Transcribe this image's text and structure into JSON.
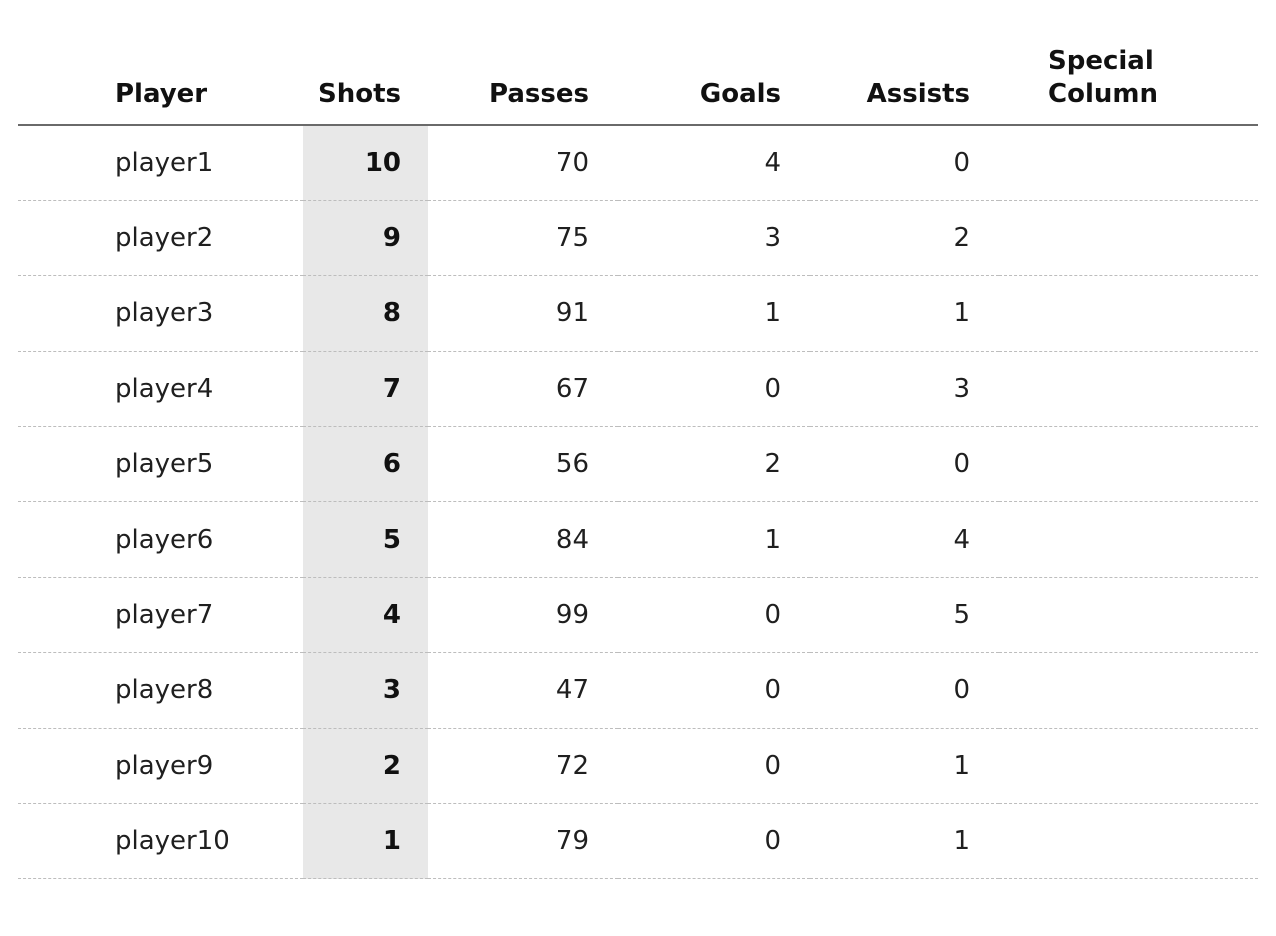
{
  "chart_data": {
    "type": "table",
    "title": "",
    "columns": [
      {
        "key": "player",
        "label": "Player",
        "align": "left",
        "highlighted": false
      },
      {
        "key": "shots",
        "label": "Shots",
        "align": "right",
        "highlighted": true
      },
      {
        "key": "passes",
        "label": "Passes",
        "align": "right",
        "highlighted": false
      },
      {
        "key": "goals",
        "label": "Goals",
        "align": "right",
        "highlighted": false
      },
      {
        "key": "assists",
        "label": "Assists",
        "align": "right",
        "highlighted": false
      },
      {
        "key": "special",
        "label": "Special Column",
        "align": "left",
        "highlighted": false
      }
    ],
    "rows": [
      {
        "player": "player1",
        "shots": 10,
        "passes": 70,
        "goals": 4,
        "assists": 0,
        "special": ""
      },
      {
        "player": "player2",
        "shots": 9,
        "passes": 75,
        "goals": 3,
        "assists": 2,
        "special": ""
      },
      {
        "player": "player3",
        "shots": 8,
        "passes": 91,
        "goals": 1,
        "assists": 1,
        "special": ""
      },
      {
        "player": "player4",
        "shots": 7,
        "passes": 67,
        "goals": 0,
        "assists": 3,
        "special": ""
      },
      {
        "player": "player5",
        "shots": 6,
        "passes": 56,
        "goals": 2,
        "assists": 0,
        "special": ""
      },
      {
        "player": "player6",
        "shots": 5,
        "passes": 84,
        "goals": 1,
        "assists": 4,
        "special": ""
      },
      {
        "player": "player7",
        "shots": 4,
        "passes": 99,
        "goals": 0,
        "assists": 5,
        "special": ""
      },
      {
        "player": "player8",
        "shots": 3,
        "passes": 47,
        "goals": 0,
        "assists": 0,
        "special": ""
      },
      {
        "player": "player9",
        "shots": 2,
        "passes": 72,
        "goals": 0,
        "assists": 1,
        "special": ""
      },
      {
        "player": "player10",
        "shots": 1,
        "passes": 79,
        "goals": 0,
        "assists": 1,
        "special": ""
      }
    ],
    "layout": {
      "highlight_column": "shots",
      "grid": "horizontal-dashed-row-separators",
      "header_rule": "solid"
    }
  },
  "colors": {
    "background": "#ffffff",
    "highlight_band": "#e8e8e8",
    "header_rule": "#6a6a6a",
    "row_separator": "#bdbdbd",
    "text": "#1a1a1a"
  }
}
